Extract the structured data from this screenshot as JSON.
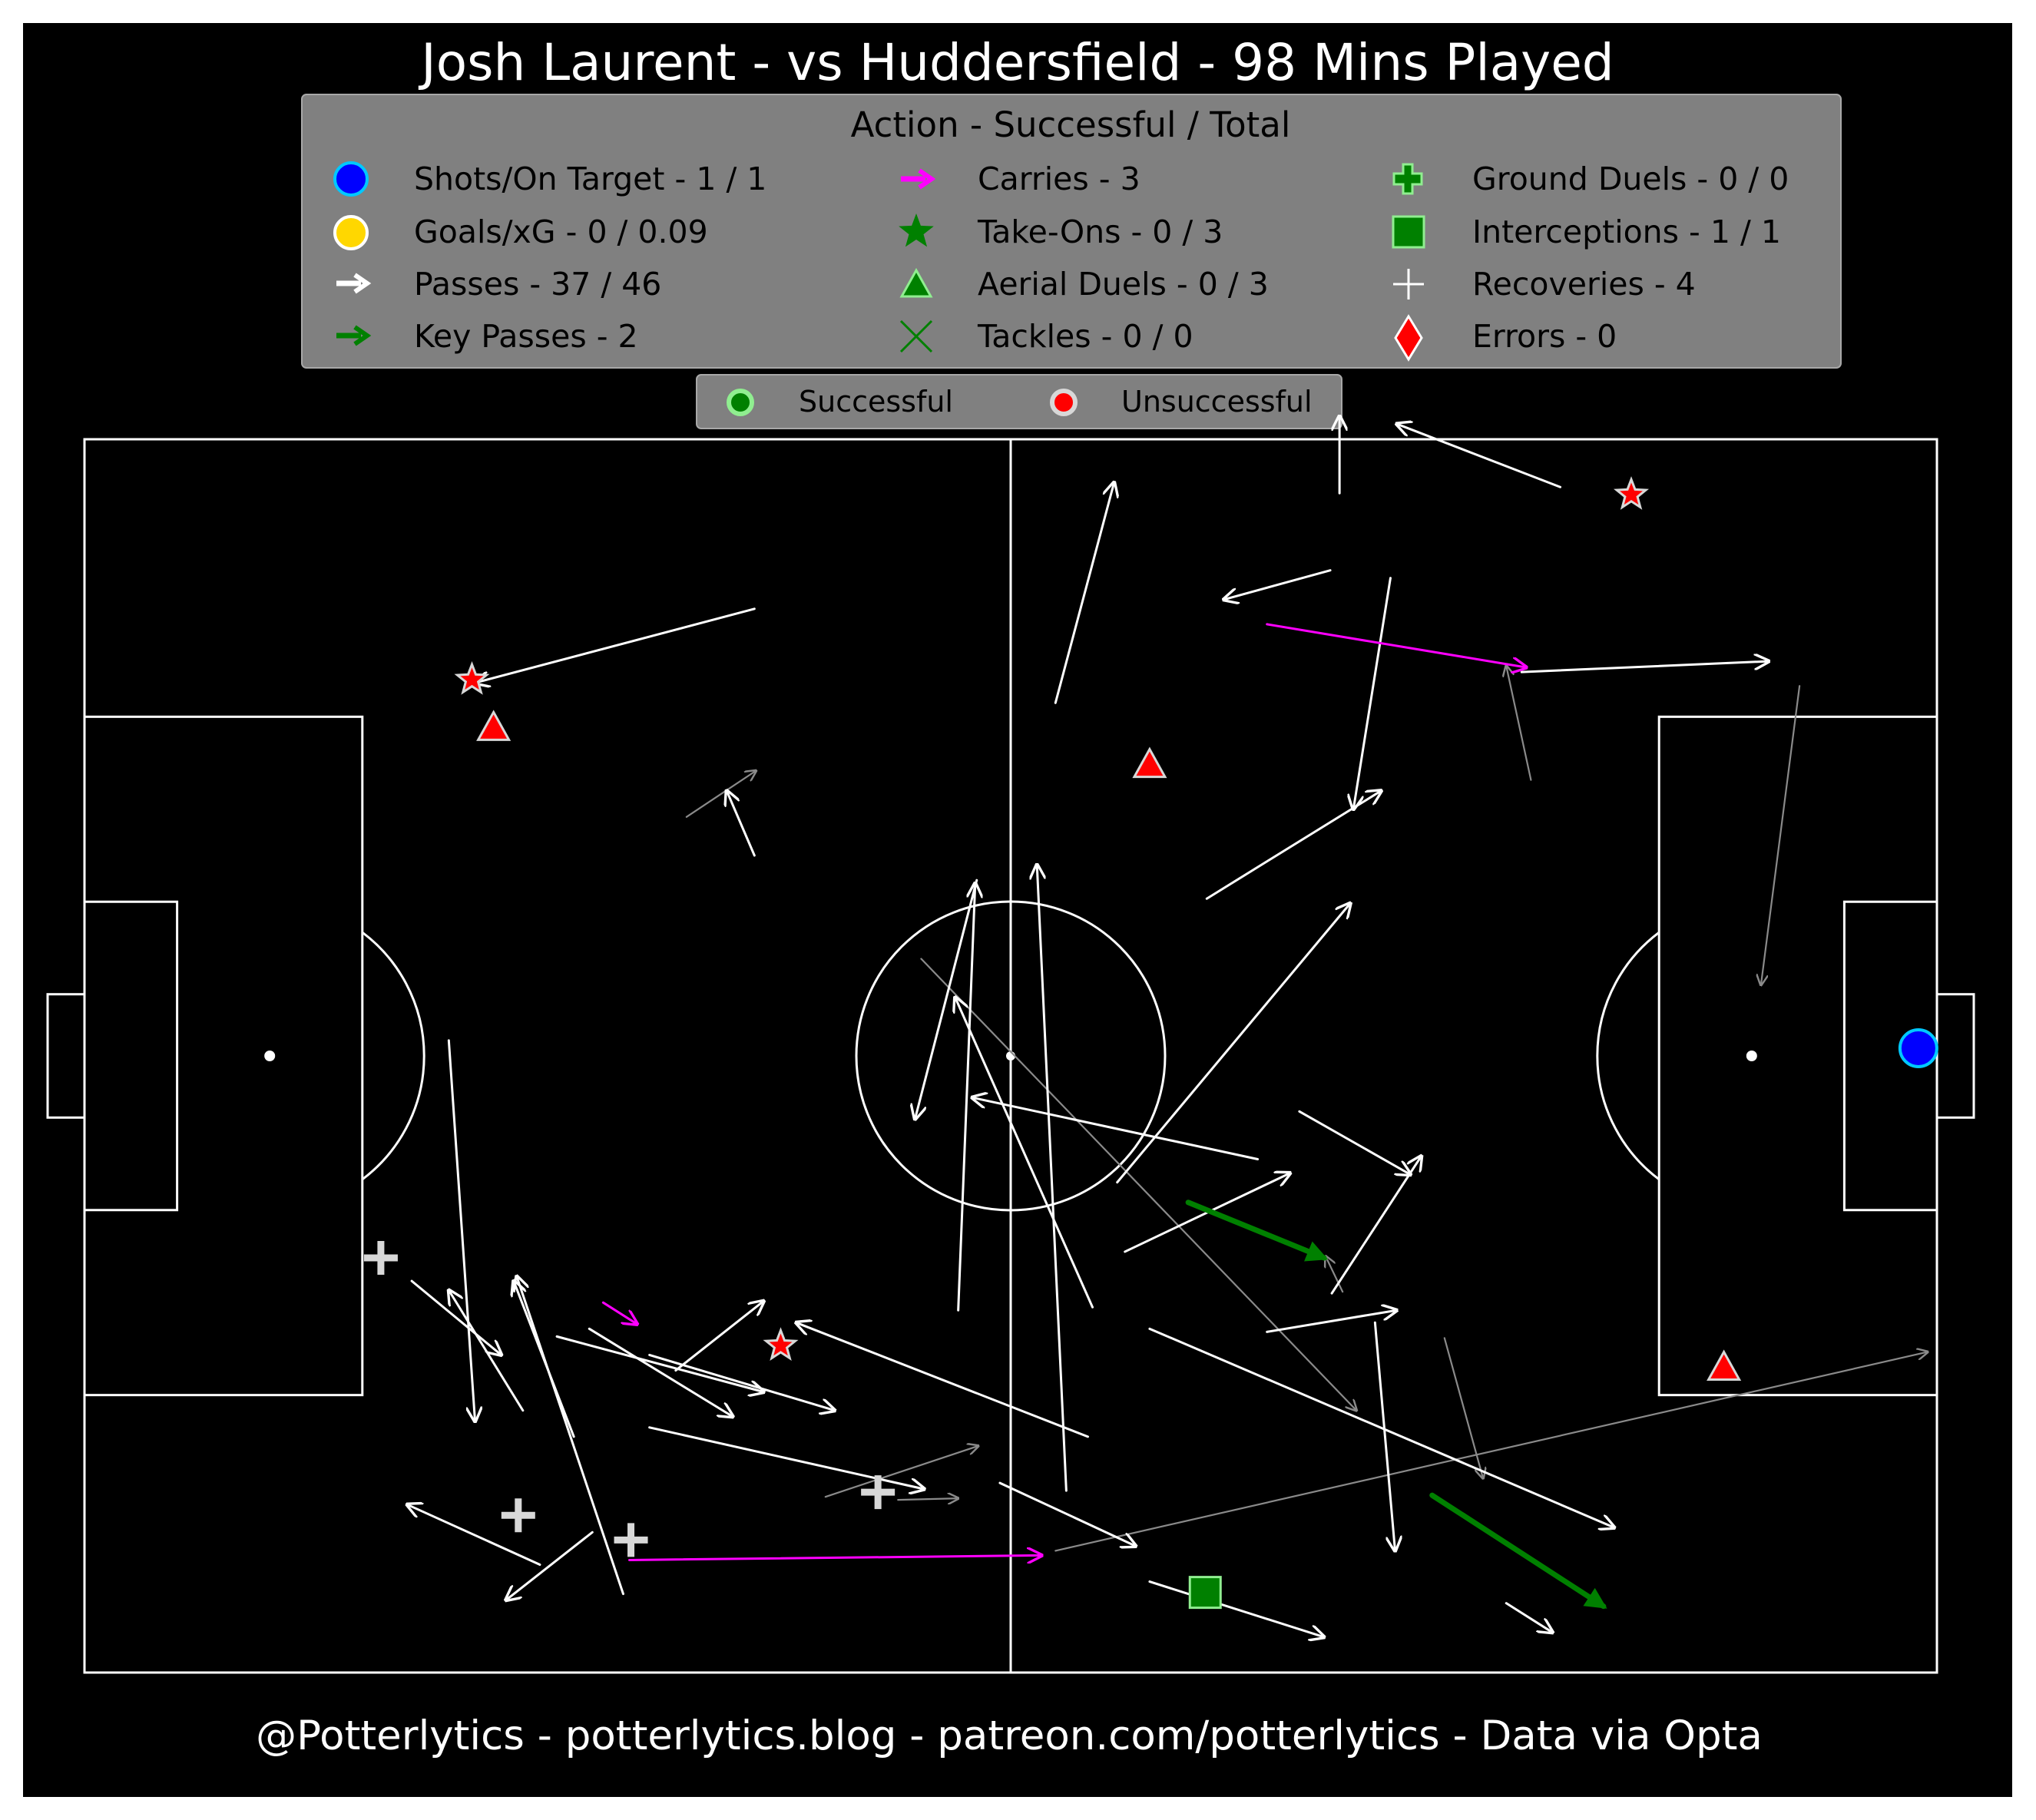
{
  "title": "Josh Laurent - vs Huddersfield - 98 Mins Played",
  "footer": "@Potterlytics - potterlytics.blog - patreon.com/potterlytics - Data via Opta",
  "legend": {
    "title": "Action - Successful / Total",
    "items": [
      {
        "label": "Shots/On Target - 1 / 1",
        "icon": "shot-circle-icon"
      },
      {
        "label": "Goals/xG - 0 / 0.09",
        "icon": "goal-circle-icon"
      },
      {
        "label": "Passes - 37 / 46",
        "icon": "pass-arrow-icon"
      },
      {
        "label": "Key Passes - 2",
        "icon": "key-pass-arrow-icon"
      },
      {
        "label": "Carries - 3",
        "icon": "carry-arrow-icon"
      },
      {
        "label": "Take-Ons - 0 / 3",
        "icon": "star-icon"
      },
      {
        "label": "Aerial Duels - 0 / 3",
        "icon": "triangle-icon"
      },
      {
        "label": "Tackles - 0 / 0",
        "icon": "x-icon"
      },
      {
        "label": "Ground Duels - 0 / 0",
        "icon": "plus-icon"
      },
      {
        "label": "Interceptions - 1 / 1",
        "icon": "square-icon"
      },
      {
        "label": "Recoveries - 4",
        "icon": "thin-plus-icon"
      },
      {
        "label": "Errors - 0",
        "icon": "diamond-icon"
      }
    ]
  },
  "outcome_legend": {
    "successful": "Successful",
    "unsuccessful": "Unsuccessful"
  },
  "colors": {
    "background": "#000000",
    "frame": "#ffffff",
    "legend_bg": "#808080",
    "pass": "#ffffff",
    "failed_pass": "#8a8a8a",
    "key_pass": "#008000",
    "carry": "#ff00ff",
    "shot": "#0000ff",
    "goal": "#ffd700",
    "unsuccessful": "#ff0000",
    "successful_edge": "#90ee90",
    "interception": "#008000"
  },
  "chart_data": {
    "type": "scatter",
    "pitch": {
      "length": 120,
      "width": 80
    },
    "passes": [
      {
        "x": 43.4,
        "y": 69.0,
        "ex": 25.3,
        "ey": 64.2
      },
      {
        "x": 43.4,
        "y": 53.0,
        "ex": 41.6,
        "ey": 57.2
      },
      {
        "x": 23.6,
        "y": 41.0,
        "ex": 25.3,
        "ey": 16.3
      },
      {
        "x": 21.2,
        "y": 25.4,
        "ex": 27.0,
        "ey": 20.6
      },
      {
        "x": 30.6,
        "y": 21.8,
        "ex": 44.0,
        "ey": 18.2
      },
      {
        "x": 36.6,
        "y": 20.6,
        "ex": 48.6,
        "ey": 17.0
      },
      {
        "x": 28.4,
        "y": 17.0,
        "ex": 23.6,
        "ey": 24.8
      },
      {
        "x": 31.7,
        "y": 15.3,
        "ex": 27.8,
        "ey": 25.4
      },
      {
        "x": 29.5,
        "y": 7.0,
        "ex": 20.9,
        "ey": 10.9
      },
      {
        "x": 32.9,
        "y": 9.1,
        "ex": 27.3,
        "ey": 4.7
      },
      {
        "x": 34.9,
        "y": 5.1,
        "ex": 28.0,
        "ey": 25.7
      },
      {
        "x": 38.3,
        "y": 19.6,
        "ex": 44.0,
        "ey": 24.1
      },
      {
        "x": 32.7,
        "y": 22.3,
        "ex": 42.0,
        "ey": 16.6
      },
      {
        "x": 36.6,
        "y": 15.9,
        "ex": 54.4,
        "ey": 11.9
      },
      {
        "x": 65.0,
        "y": 15.3,
        "ex": 46.1,
        "ey": 22.7
      },
      {
        "x": 56.6,
        "y": 23.5,
        "ex": 57.7,
        "ey": 51.2
      },
      {
        "x": 57.8,
        "y": 51.4,
        "ex": 53.8,
        "ey": 35.9
      },
      {
        "x": 63.6,
        "y": 11.8,
        "ex": 61.7,
        "ey": 52.4
      },
      {
        "x": 59.3,
        "y": 12.3,
        "ex": 68.1,
        "ey": 8.2
      },
      {
        "x": 65.3,
        "y": 23.7,
        "ex": 56.4,
        "ey": 43.8
      },
      {
        "x": 76.0,
        "y": 33.3,
        "ex": 57.5,
        "ey": 37.3
      },
      {
        "x": 67.4,
        "y": 27.3,
        "ex": 78.1,
        "ey": 32.4
      },
      {
        "x": 66.9,
        "y": 31.8,
        "ex": 82.0,
        "ey": 49.9
      },
      {
        "x": 72.7,
        "y": 50.2,
        "ex": 84.0,
        "ey": 57.2
      },
      {
        "x": 62.9,
        "y": 62.9,
        "ex": 66.7,
        "ey": 77.2
      },
      {
        "x": 84.6,
        "y": 71.0,
        "ex": 82.2,
        "ey": 56.0
      },
      {
        "x": 80.7,
        "y": 71.5,
        "ex": 73.8,
        "ey": 69.6
      },
      {
        "x": 81.3,
        "y": 76.5,
        "ex": 81.3,
        "ey": 81.5
      },
      {
        "x": 95.6,
        "y": 76.9,
        "ex": 85.0,
        "ey": 81.0
      },
      {
        "x": 93.1,
        "y": 64.9,
        "ex": 109.1,
        "ey": 65.6
      },
      {
        "x": 69.0,
        "y": 5.9,
        "ex": 80.3,
        "ey": 2.3
      },
      {
        "x": 69.0,
        "y": 22.3,
        "ex": 99.1,
        "ey": 9.4
      },
      {
        "x": 78.7,
        "y": 36.4,
        "ex": 85.9,
        "ey": 32.3
      },
      {
        "x": 80.8,
        "y": 24.6,
        "ex": 86.6,
        "ey": 33.5
      },
      {
        "x": 83.6,
        "y": 22.7,
        "ex": 84.9,
        "ey": 7.9
      },
      {
        "x": 76.6,
        "y": 22.1,
        "ex": 85.0,
        "ey": 23.5
      },
      {
        "x": 92.1,
        "y": 4.5,
        "ex": 95.1,
        "ey": 2.6
      }
    ],
    "failed_passes": [
      {
        "x": 39.0,
        "y": 55.5,
        "ex": 43.5,
        "ey": 58.5
      },
      {
        "x": 48.0,
        "y": 11.4,
        "ex": 57.9,
        "ey": 14.7
      },
      {
        "x": 54.2,
        "y": 46.3,
        "ex": 82.4,
        "ey": 17.0
      },
      {
        "x": 52.7,
        "y": 11.2,
        "ex": 56.6,
        "ey": 11.3
      },
      {
        "x": 62.9,
        "y": 7.9,
        "ex": 119.4,
        "ey": 20.8
      },
      {
        "x": 81.5,
        "y": 24.7,
        "ex": 80.4,
        "ey": 27.0
      },
      {
        "x": 88.1,
        "y": 21.7,
        "ex": 90.6,
        "ey": 12.6
      },
      {
        "x": 93.7,
        "y": 57.9,
        "ex": 92.1,
        "ey": 65.3
      },
      {
        "x": 111.1,
        "y": 64.0,
        "ex": 108.6,
        "ey": 44.6
      }
    ],
    "key_passes": [
      {
        "x": 71.5,
        "y": 30.5,
        "ex": 80.3,
        "ey": 26.9
      },
      {
        "x": 87.3,
        "y": 11.5,
        "ex": 98.4,
        "ey": 4.3
      }
    ],
    "carries": [
      {
        "x": 33.6,
        "y": 24.0,
        "ex": 35.8,
        "ey": 22.6
      },
      {
        "x": 35.3,
        "y": 7.3,
        "ex": 62.0,
        "ey": 7.6
      },
      {
        "x": 76.6,
        "y": 68.0,
        "ex": 93.4,
        "ey": 65.2
      }
    ],
    "take_ons": [
      {
        "x": 25.1,
        "y": 64.4,
        "success": false
      },
      {
        "x": 45.1,
        "y": 21.2,
        "success": false
      },
      {
        "x": 100.2,
        "y": 76.4,
        "success": false
      }
    ],
    "aerial_duels": [
      {
        "x": 26.5,
        "y": 61.2,
        "success": false
      },
      {
        "x": 69.0,
        "y": 58.8,
        "success": false
      },
      {
        "x": 106.2,
        "y": 19.7,
        "success": false
      }
    ],
    "interceptions": [
      {
        "x": 72.6,
        "y": 5.2,
        "success": true
      }
    ],
    "recoveries": [
      {
        "x": 19.2,
        "y": 26.9
      },
      {
        "x": 28.1,
        "y": 10.2
      },
      {
        "x": 35.4,
        "y": 8.6
      },
      {
        "x": 51.4,
        "y": 11.7
      }
    ],
    "shots": [
      {
        "x": 118.8,
        "y": 40.5,
        "on_target": true
      }
    ]
  }
}
